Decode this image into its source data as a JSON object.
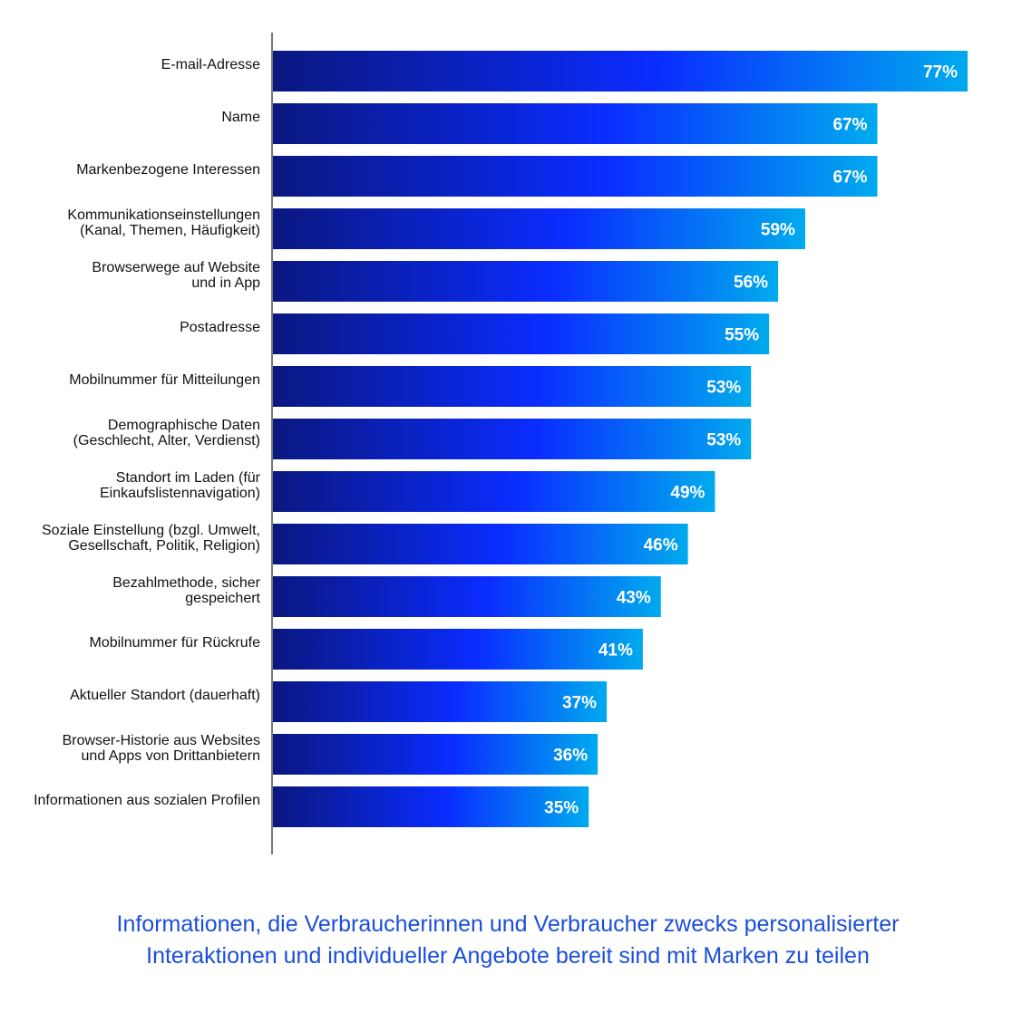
{
  "chart_data": {
    "type": "bar",
    "orientation": "horizontal",
    "categories": [
      [
        "E-mail-Adresse"
      ],
      [
        "Name"
      ],
      [
        "Markenbezogene Interessen"
      ],
      [
        "Kommunikationseinstellungen",
        "(Kanal, Themen, Häufigkeit)"
      ],
      [
        "Browserwege auf Website",
        "und in App"
      ],
      [
        "Postadresse"
      ],
      [
        "Mobilnummer für Mitteilungen"
      ],
      [
        "Demographische Daten",
        "(Geschlecht, Alter, Verdienst)"
      ],
      [
        "Standort im Laden (für",
        "Einkaufslistennavigation)"
      ],
      [
        "Soziale Einstellung (bzgl. Umwelt,",
        "Gesellschaft, Politik, Religion)"
      ],
      [
        "Bezahlmethode, sicher",
        "gespeichert"
      ],
      [
        "Mobilnummer für Rückrufe"
      ],
      [
        "Aktueller Standort (dauerhaft)"
      ],
      [
        "Browser-Historie aus Websites",
        "und Apps von Drittanbietern"
      ],
      [
        "Informationen aus sozialen Profilen"
      ]
    ],
    "values": [
      77,
      67,
      67,
      59,
      56,
      55,
      53,
      53,
      49,
      46,
      43,
      41,
      37,
      36,
      35
    ],
    "value_labels": [
      "77%",
      "67%",
      "67%",
      "59%",
      "56%",
      "55%",
      "53%",
      "53%",
      "49%",
      "46%",
      "43%",
      "41%",
      "37%",
      "36%",
      "35%"
    ],
    "unit": "%",
    "xlim": [
      0,
      77
    ],
    "grid": false,
    "legend": "none",
    "colors": {
      "bar_gradient_start": "#0a1780",
      "bar_gradient_mid": "#0a2cff",
      "bar_gradient_end": "#00aaee",
      "axis": "#777777",
      "value_text": "#ffffff",
      "category_text": "#111111"
    }
  },
  "caption": {
    "lines": [
      "Informationen, die Verbraucherinnen und Verbraucher zwecks personalisierter",
      "Interaktionen und individueller Angebote bereit sind mit Marken zu teilen"
    ],
    "color": "#1b4fd8"
  }
}
